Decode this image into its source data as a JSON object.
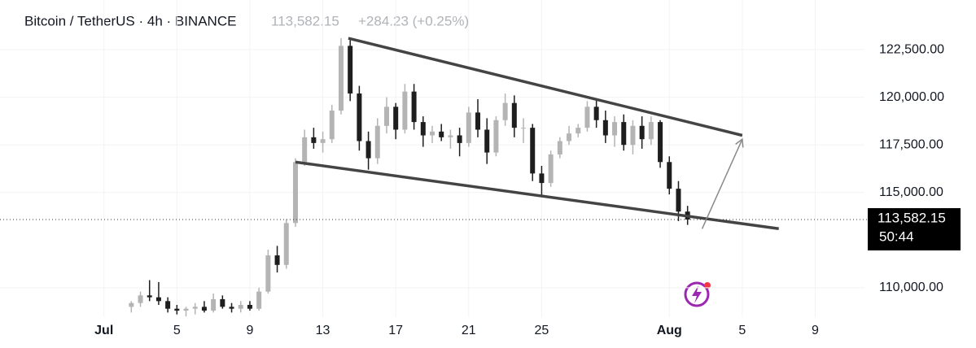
{
  "chart_data": {
    "type": "candlestick",
    "title": "Bitcoin / TetherUS · 4h · BINANCE",
    "last_price": "113,582.15",
    "change": "+284.23 (+0.25%)",
    "current_price": {
      "value": 113582.15,
      "label": "113,582.15"
    },
    "countdown": "50:44",
    "up_color": "#b4b4b4",
    "down_color": "#1e1e1e",
    "xlim": [
      -4.7,
      42.7
    ],
    "xticks": [
      {
        "value": 1,
        "label": "Jul"
      },
      5,
      9,
      13,
      17,
      21,
      25,
      {
        "value": 32,
        "label": "Aug"
      },
      {
        "value": 36,
        "label": "5"
      },
      {
        "value": 40,
        "label": "9"
      }
    ],
    "ylim": [
      108460,
      125107
    ],
    "yticks": [
      {
        "value": 110000,
        "label": "110,000.00"
      },
      {
        "value": 115000,
        "label": "115,000.00"
      },
      {
        "value": 117500,
        "label": "117,500.00"
      },
      {
        "value": 120000,
        "label": "120,000.00"
      },
      {
        "value": 122500,
        "label": "122,500.00"
      }
    ],
    "candles": {
      "x": [
        2.5,
        3,
        3.5,
        4,
        4.5,
        5,
        5.5,
        6,
        6.5,
        7,
        7.5,
        8,
        8.5,
        9,
        9.5,
        10,
        10.5,
        11,
        11.5,
        12,
        12.5,
        13,
        13.5,
        14,
        14.5,
        15,
        15.5,
        16,
        16.5,
        17,
        17.5,
        18,
        18.5,
        19,
        19.5,
        20,
        20.5,
        21,
        21.5,
        22,
        22.5,
        23,
        23.5,
        24,
        24.5,
        25,
        25.5,
        26,
        26.5,
        27,
        27.5,
        28,
        28.5,
        29,
        29.5,
        30,
        30.5,
        31,
        31.5,
        32,
        32.5,
        33
      ],
      "open": [
        109000,
        109200,
        109600,
        109500,
        109300,
        108900,
        108800,
        108900,
        109000,
        108800,
        109400,
        109000,
        108900,
        109100,
        108900,
        109800,
        111700,
        111200,
        113400,
        116600,
        117900,
        117600,
        117800,
        119300,
        122700,
        120200,
        117700,
        116800,
        118500,
        119500,
        118300,
        120300,
        118700,
        118000,
        118200,
        117900,
        118000,
        117600,
        119200,
        118300,
        117100,
        118800,
        119700,
        118400,
        118400,
        116000,
        115500,
        117000,
        117700,
        118100,
        118400,
        119500,
        118800,
        118000,
        118700,
        117500,
        118500,
        117800,
        118700,
        116600,
        115200,
        114000
      ],
      "high": [
        109300,
        109800,
        110400,
        110300,
        109500,
        109100,
        109000,
        109200,
        109300,
        109700,
        109600,
        109200,
        109300,
        109300,
        110000,
        112000,
        112200,
        113600,
        116800,
        118300,
        118400,
        118200,
        119600,
        123100,
        123000,
        120600,
        118200,
        118900,
        120000,
        119700,
        120700,
        120700,
        119000,
        118500,
        118600,
        118300,
        118400,
        119500,
        119900,
        118900,
        119000,
        120200,
        120100,
        118900,
        118600,
        116400,
        117200,
        117900,
        118500,
        118600,
        119800,
        119900,
        119300,
        119000,
        119100,
        118800,
        119000,
        119000,
        118800,
        116900,
        115600,
        114300
      ],
      "low": [
        108700,
        109000,
        109300,
        109100,
        108700,
        108600,
        108500,
        108600,
        108700,
        108700,
        108900,
        108700,
        108700,
        108800,
        108800,
        109700,
        110800,
        111000,
        113200,
        116400,
        117300,
        117100,
        117600,
        119100,
        119800,
        117200,
        116200,
        116500,
        118100,
        117800,
        118100,
        118300,
        117400,
        117600,
        117700,
        117300,
        116900,
        117400,
        117900,
        116500,
        116900,
        118500,
        117900,
        117600,
        115600,
        114800,
        115300,
        116800,
        117500,
        117900,
        118200,
        118400,
        117600,
        117400,
        117200,
        117000,
        117300,
        117500,
        116300,
        114900,
        113500,
        113300
      ],
      "close": [
        109200,
        109600,
        109500,
        109300,
        108900,
        108800,
        108900,
        109000,
        108800,
        109400,
        109000,
        108900,
        109100,
        108900,
        109800,
        111700,
        111200,
        113400,
        116600,
        117900,
        117600,
        117800,
        119300,
        122700,
        120200,
        117700,
        116800,
        118500,
        119500,
        118300,
        120300,
        118700,
        118000,
        118200,
        117900,
        118000,
        117600,
        119200,
        118300,
        117100,
        118800,
        119700,
        118400,
        118400,
        116000,
        115500,
        117000,
        117700,
        118100,
        118400,
        119500,
        118800,
        118000,
        118700,
        117500,
        118500,
        117800,
        118700,
        116600,
        115200,
        114000,
        113582.15
      ]
    },
    "lines": [
      {
        "x": [
          14.4,
          36
        ],
        "y": [
          123100,
          118000
        ],
        "color": "#444444"
      },
      {
        "x": [
          11.5,
          38
        ],
        "y": [
          116600,
          113100
        ],
        "color": "#444444"
      }
    ],
    "arrow": {
      "x": [
        33.8,
        36
      ],
      "y": [
        113100,
        117800
      ],
      "color": "#888888"
    }
  }
}
